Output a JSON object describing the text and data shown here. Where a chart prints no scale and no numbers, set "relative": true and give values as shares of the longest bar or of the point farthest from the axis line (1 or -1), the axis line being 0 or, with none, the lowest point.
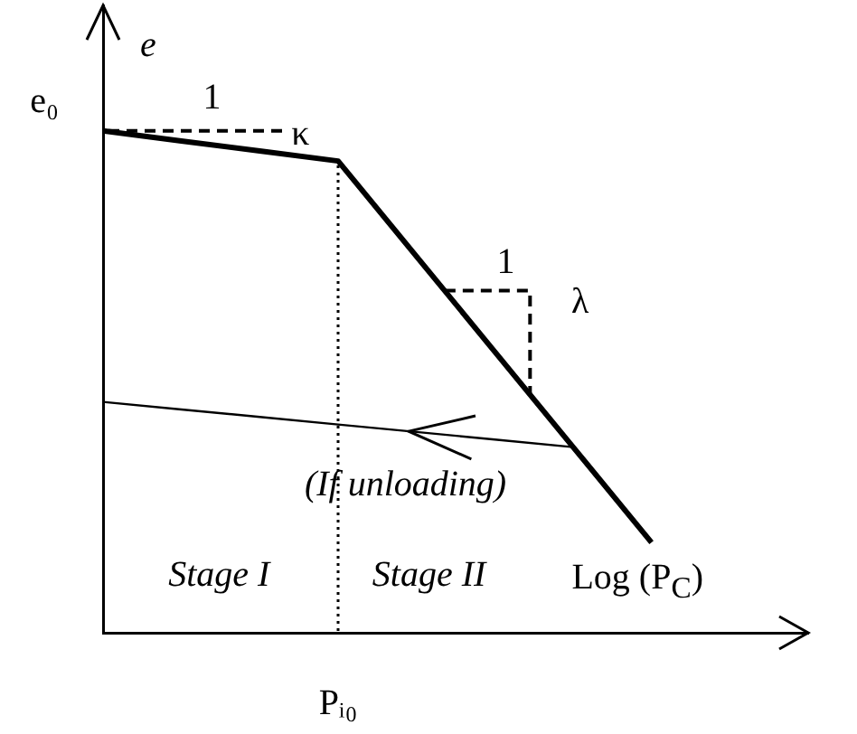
{
  "chart_data": {
    "type": "line",
    "xlabel": "Log (P$_{C}$)",
    "ylabel": "e",
    "categories": [
      null,
      null,
      null,
      null,
      null,
      null,
      null,
      null,
      null,
      null
    ],
    "series": [
      {
        "color": "#000000",
        "values": [
          1,
          0.98,
          0.96,
          0.94,
          0.75,
          0.56,
          0.37,
          0.18,
          null,
          null
        ]
      },
      {
        "color": "#000000",
        "values": [
          0.46,
          0.445,
          0.43,
          0.415,
          0.4,
          0.385,
          0.37,
          null,
          null,
          null
        ]
      }
    ],
    "relative": true,
    "annotations": [
      "e₀",
      "1",
      "κ",
      "1",
      "λ",
      "(If unloading)",
      "Stage I",
      "Stage II",
      "Pᵢ₀"
    ],
    "grid": false,
    "legend": false,
    "marker": "none"
  }
}
